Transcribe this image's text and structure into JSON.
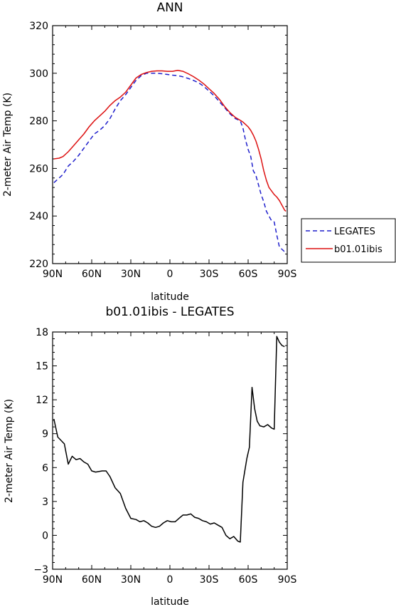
{
  "chart_data": [
    {
      "type": "line",
      "title": "ANN",
      "xlabel": "latitude",
      "ylabel": "2-meter Air Temp (K)",
      "xlim": [
        -90,
        90
      ],
      "ylim": [
        220,
        320
      ],
      "x_tick_values": [
        -90,
        -60,
        -30,
        0,
        30,
        60,
        90
      ],
      "x_tick_labels": [
        "90N",
        "60N",
        "30N",
        "0",
        "30S",
        "60S",
        "90S"
      ],
      "y_ticks": [
        220,
        240,
        260,
        280,
        300,
        320
      ],
      "legend_position": "right",
      "series": [
        {
          "name": "LEGATES",
          "color": "#1f1fcc",
          "dash": "dashed",
          "x": [
            -89,
            -85,
            -82,
            -78,
            -74,
            -70,
            -66,
            -62,
            -58,
            -54,
            -50,
            -46,
            -42,
            -38,
            -34,
            -30,
            -26,
            -22,
            -18,
            -14,
            -10,
            -6,
            -2,
            2,
            6,
            10,
            14,
            18,
            22,
            26,
            30,
            34,
            38,
            42,
            46,
            50,
            54,
            56,
            58,
            60,
            62,
            64,
            66,
            68,
            70,
            72,
            74,
            76,
            78,
            80,
            82,
            84,
            86,
            88,
            89
          ],
          "y": [
            254,
            256,
            257.5,
            261,
            263,
            265.5,
            268.5,
            271.5,
            274.5,
            276,
            278,
            281,
            285,
            288.5,
            291,
            294,
            297,
            299,
            300,
            300,
            300,
            299.8,
            299.5,
            299.2,
            299,
            298.5,
            297.8,
            297,
            296,
            294.5,
            292.5,
            290.5,
            288,
            285.5,
            283,
            281,
            280,
            277,
            272,
            268,
            265,
            259,
            257,
            253,
            249,
            246,
            242,
            240,
            238,
            237.5,
            232,
            227,
            226,
            225,
            225
          ]
        },
        {
          "name": "b01.01ibis",
          "color": "#dd1111",
          "dash": "solid",
          "x": [
            -89,
            -85,
            -82,
            -78,
            -74,
            -70,
            -66,
            -62,
            -58,
            -54,
            -50,
            -46,
            -42,
            -38,
            -34,
            -30,
            -26,
            -22,
            -18,
            -14,
            -10,
            -6,
            -2,
            2,
            6,
            10,
            14,
            18,
            22,
            26,
            30,
            34,
            38,
            42,
            46,
            50,
            54,
            56,
            58,
            60,
            62,
            64,
            66,
            68,
            70,
            72,
            74,
            76,
            78,
            80,
            82,
            84,
            86,
            88,
            89
          ],
          "y": [
            264,
            264.3,
            265,
            267,
            269.5,
            272,
            274.5,
            277.5,
            280,
            282,
            284,
            286.5,
            288.5,
            290,
            292,
            295,
            298,
            299.5,
            300.3,
            300.8,
            301,
            301,
            300.8,
            300.8,
            301.2,
            300.8,
            299.8,
            298.6,
            297.2,
            295.5,
            293.5,
            291.5,
            289,
            286,
            283.5,
            281.5,
            280.2,
            279.5,
            278.5,
            277.5,
            276,
            274,
            271.5,
            268,
            264,
            259,
            255,
            252,
            250.5,
            249,
            248,
            246.5,
            244.5,
            242.5,
            242
          ]
        }
      ]
    },
    {
      "type": "line",
      "title": "b01.01ibis - LEGATES",
      "xlabel": "latitude",
      "ylabel": "2-meter Air Temp (K)",
      "xlim": [
        -90,
        90
      ],
      "ylim": [
        -3,
        18
      ],
      "x_tick_values": [
        -90,
        -60,
        -30,
        0,
        30,
        60,
        90
      ],
      "x_tick_labels": [
        "90N",
        "60N",
        "30N",
        "0",
        "30S",
        "60S",
        "90S"
      ],
      "y_ticks": [
        -3,
        0,
        3,
        6,
        9,
        12,
        15,
        18
      ],
      "series": [
        {
          "color": "#000000",
          "dash": "solid",
          "x": [
            -89,
            -86,
            -81,
            -78,
            -75,
            -72,
            -69,
            -66,
            -63,
            -60,
            -57,
            -52,
            -49,
            -46,
            -42,
            -38,
            -34,
            -30,
            -26,
            -23,
            -20,
            -17,
            -14,
            -11,
            -8,
            -5,
            -2,
            1,
            4,
            7,
            10,
            13,
            16,
            19,
            22,
            25,
            28,
            31,
            34,
            37,
            40,
            43,
            46,
            49,
            52,
            54,
            56,
            59,
            61,
            63,
            65,
            67,
            69,
            72,
            75,
            78,
            80,
            82,
            84,
            86,
            88
          ],
          "y": [
            10.3,
            8.7,
            8.1,
            6.3,
            7,
            6.7,
            6.8,
            6.5,
            6.3,
            5.7,
            5.6,
            5.7,
            5.7,
            5.2,
            4.2,
            3.7,
            2.4,
            1.5,
            1.4,
            1.2,
            1.3,
            1.1,
            0.8,
            0.7,
            0.8,
            1.1,
            1.3,
            1.2,
            1.2,
            1.5,
            1.8,
            1.8,
            1.9,
            1.6,
            1.5,
            1.3,
            1.2,
            1,
            1.1,
            0.9,
            0.7,
            0,
            -0.3,
            -0.1,
            -0.5,
            -0.6,
            4.7,
            6.8,
            7.8,
            13.1,
            11.2,
            10.1,
            9.7,
            9.6,
            9.8,
            9.5,
            9.4,
            17.6,
            17.1,
            16.8,
            16.7
          ]
        }
      ]
    }
  ]
}
